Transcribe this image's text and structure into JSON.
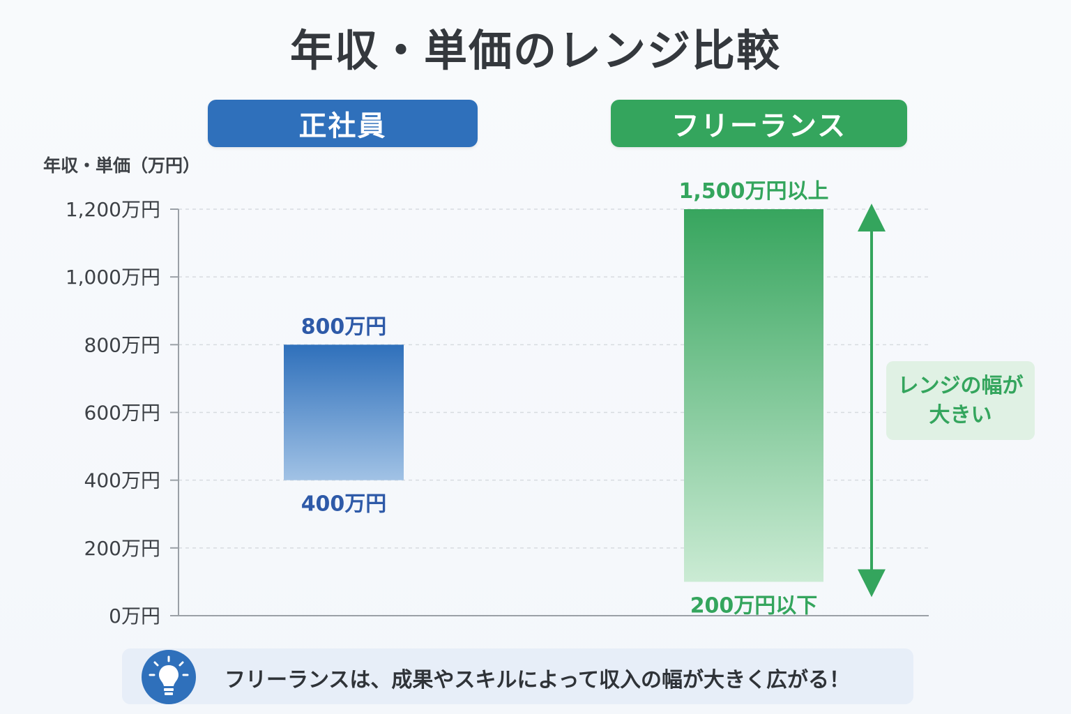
{
  "title": "年収・単価のレンジ比較",
  "y_axis_label": "年収・単価（万円）",
  "callout": {
    "line1": "レンジの幅が",
    "line2": "大きい"
  },
  "note": {
    "text": "フリーランスは、成果やスキルによって収入の幅が大きく広がる！",
    "icon": "lightbulb-icon"
  },
  "colors": {
    "employee": "#2f70bb",
    "freelance": "#34a55d",
    "data_label_employee": "#2e5aa8"
  },
  "chart_data": {
    "type": "bar",
    "title": "年収・単価のレンジ比較",
    "ylabel": "年収・単価（万円）",
    "ylim": [
      0,
      1200
    ],
    "yticks": [
      0,
      200,
      400,
      600,
      800,
      1000,
      1200
    ],
    "ytick_labels": [
      "0万円",
      "200万円",
      "400万円",
      "600万円",
      "800万円",
      "1,000万円",
      "1,200万円"
    ],
    "grid": true,
    "categories": [
      "正社員",
      "フリーランス"
    ],
    "series": [
      {
        "low": 400,
        "high": 800,
        "low_label": "400万円",
        "high_label": "800万円"
      },
      {
        "low": 100,
        "high": 1200,
        "low_label": "200万円以下",
        "high_label": "1,500万円以上"
      }
    ]
  }
}
